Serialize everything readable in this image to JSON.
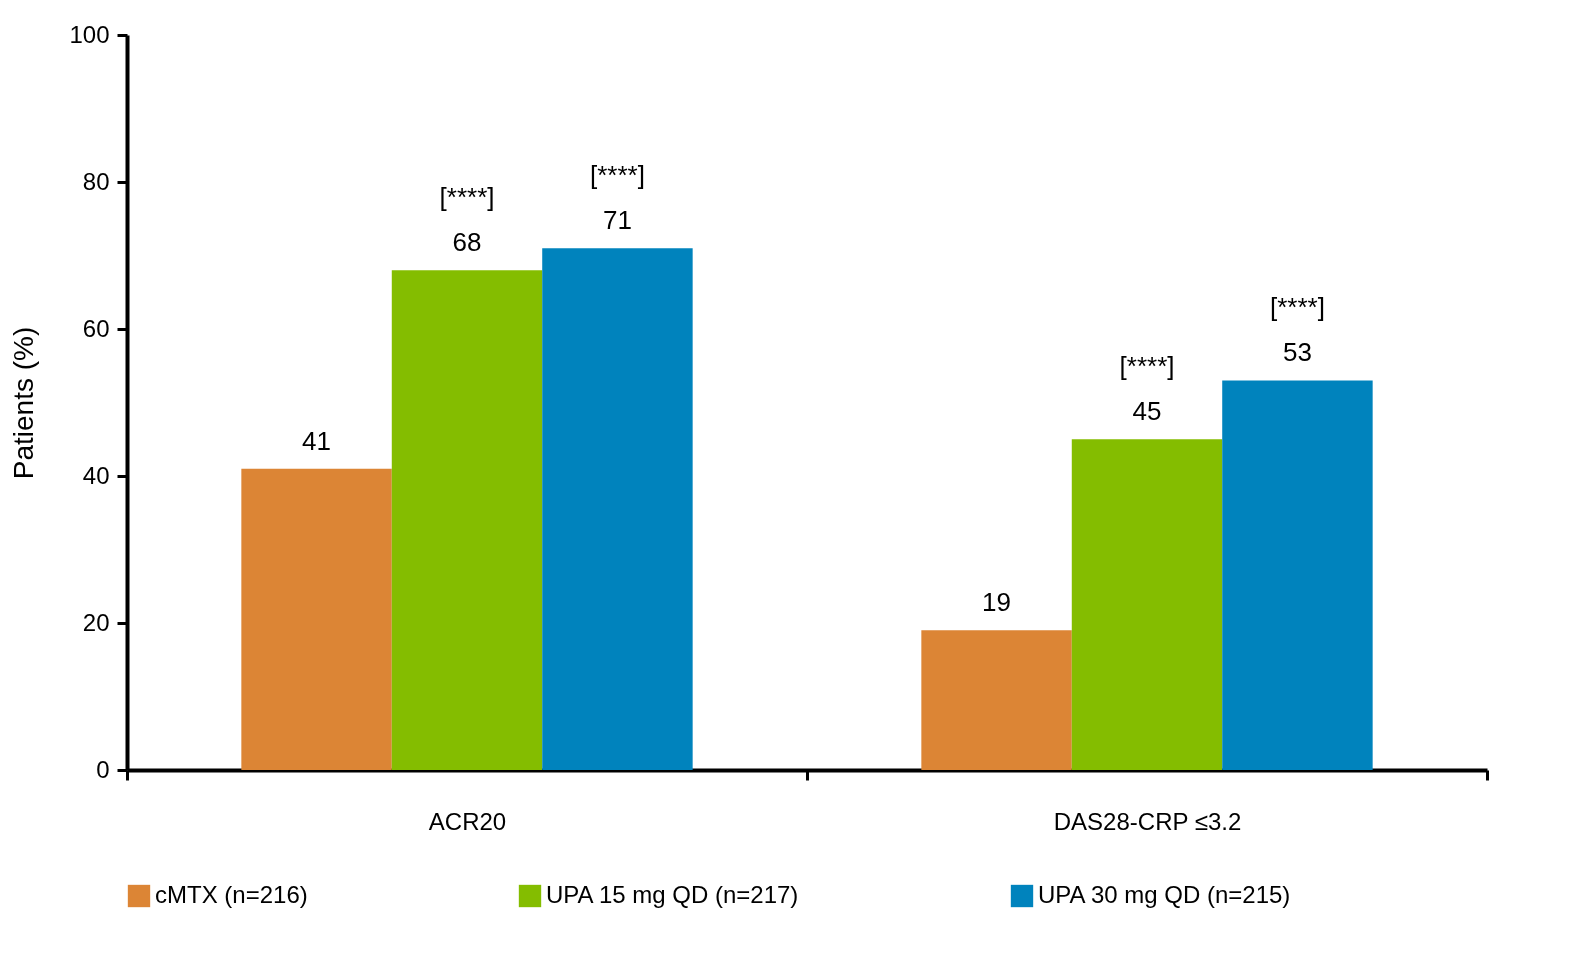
{
  "chart_data": {
    "type": "bar",
    "ylabel": "Patients (%)",
    "categories": [
      "ACR20",
      "DAS28-CRP ≤3.2"
    ],
    "series": [
      {
        "name": "cMTX (n=216)",
        "color": "#dc8535",
        "values": [
          41,
          19
        ],
        "value_labels": [
          "41",
          "19"
        ]
      },
      {
        "name": "UPA 15 mg QD (n=217)",
        "color": "#84bd00",
        "values": [
          68,
          45
        ],
        "value_labels": [
          "[****]\n68",
          "[****]\n45"
        ]
      },
      {
        "name": "UPA 30 mg QD (n=215)",
        "color": "#0083bd",
        "values": [
          71,
          53
        ],
        "value_labels": [
          "[****]\n71",
          "[****]\n53"
        ]
      }
    ],
    "ylim": [
      0,
      100
    ],
    "yticks": [
      0,
      20,
      40,
      60,
      80,
      100
    ],
    "grid": false,
    "legend": "bottom"
  }
}
